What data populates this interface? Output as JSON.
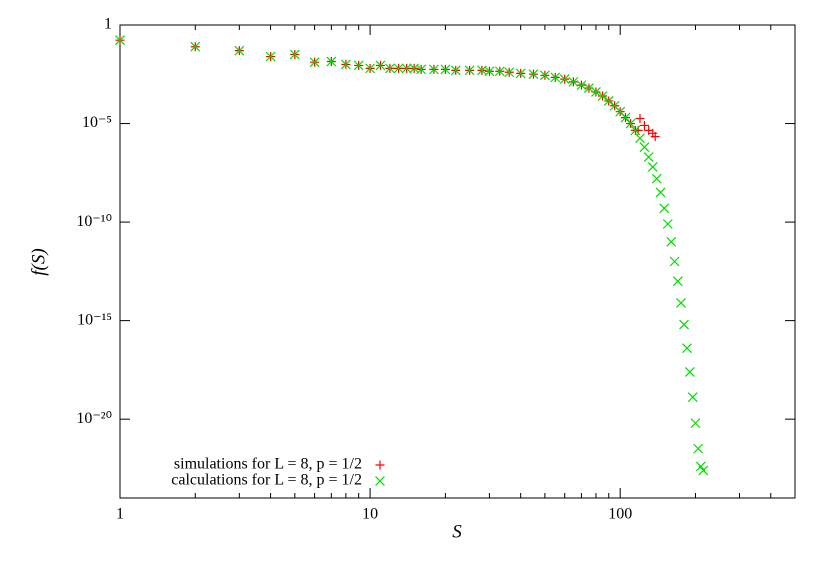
{
  "chart_data": {
    "type": "scatter",
    "xlabel": "S",
    "ylabel": "f(S)",
    "xscale": "log",
    "yscale": "log",
    "xlim": [
      1,
      500
    ],
    "ylim": [
      1e-24,
      1
    ],
    "xticks": [
      1,
      10,
      100
    ],
    "xminorticks": [
      2,
      3,
      4,
      5,
      6,
      7,
      8,
      9,
      20,
      30,
      40,
      50,
      60,
      70,
      80,
      90,
      200,
      300,
      400
    ],
    "yticks": [
      1,
      {
        "value": 1e-05,
        "label": "10⁻⁵"
      },
      {
        "value": 1e-10,
        "label": "10⁻¹⁰"
      },
      {
        "value": 1e-15,
        "label": "10⁻¹⁵"
      },
      {
        "value": 1e-20,
        "label": "10⁻²⁰"
      }
    ],
    "legend": "lower left",
    "series": [
      {
        "name": "simulations for L = 8, p = 1/2",
        "color": "#ff0000",
        "marker": "plus",
        "x": [
          1,
          2,
          3,
          4,
          5,
          6,
          7,
          8,
          9,
          10,
          11,
          12,
          13,
          14,
          15,
          16,
          18,
          20,
          22,
          25,
          28,
          30,
          33,
          36,
          40,
          45,
          50,
          55,
          60,
          65,
          70,
          75,
          80,
          85,
          90,
          95,
          100,
          105,
          110,
          115,
          118,
          120,
          125,
          130,
          135,
          138
        ],
        "values": [
          0.17,
          0.079,
          0.05,
          0.025,
          0.032,
          0.013,
          0.014,
          0.01,
          0.0089,
          0.0063,
          0.0089,
          0.0063,
          0.0063,
          0.0063,
          0.0063,
          0.0056,
          0.0056,
          0.0056,
          0.005,
          0.005,
          0.005,
          0.0045,
          0.0045,
          0.004,
          0.0035,
          0.0032,
          0.0028,
          0.0022,
          0.0018,
          0.0013,
          0.00089,
          0.00063,
          0.0004,
          0.00025,
          0.00014,
          8e-05,
          4e-05,
          2e-05,
          1e-05,
          4.5e-06,
          4.5e-06,
          1.8e-05,
          8e-06,
          4.5e-06,
          3.2e-06,
          2.2e-06
        ]
      },
      {
        "name": "calculations for L = 8, p = 1/2",
        "color": "#00dd00",
        "marker": "cross",
        "x": [
          1,
          2,
          3,
          4,
          5,
          6,
          7,
          8,
          9,
          10,
          11,
          12,
          13,
          14,
          15,
          16,
          18,
          20,
          22,
          25,
          28,
          30,
          33,
          36,
          40,
          45,
          50,
          55,
          60,
          65,
          70,
          75,
          80,
          85,
          90,
          95,
          100,
          105,
          110,
          115,
          120,
          125,
          130,
          135,
          140,
          145,
          150,
          155,
          160,
          165,
          170,
          175,
          180,
          185,
          190,
          195,
          200,
          205,
          210,
          215
        ],
        "values": [
          0.17,
          0.079,
          0.05,
          0.025,
          0.032,
          0.013,
          0.014,
          0.01,
          0.0089,
          0.0063,
          0.0089,
          0.0063,
          0.0063,
          0.0063,
          0.0063,
          0.0056,
          0.0056,
          0.0056,
          0.005,
          0.005,
          0.005,
          0.0045,
          0.0045,
          0.004,
          0.0035,
          0.0032,
          0.0028,
          0.0022,
          0.0018,
          0.0013,
          0.00089,
          0.00063,
          0.0004,
          0.00025,
          0.00014,
          8e-05,
          4e-05,
          2e-05,
          1e-05,
          4.5e-06,
          1.8e-06,
          6.3e-07,
          2e-07,
          6.3e-08,
          1.6e-08,
          3.2e-09,
          5e-10,
          8e-11,
          1e-11,
          1e-12,
          1e-13,
          7.9e-15,
          6.3e-16,
          4e-17,
          2.5e-18,
          1.3e-19,
          6.3e-21,
          3.2e-22,
          4e-23,
          2.5e-23
        ]
      }
    ]
  }
}
